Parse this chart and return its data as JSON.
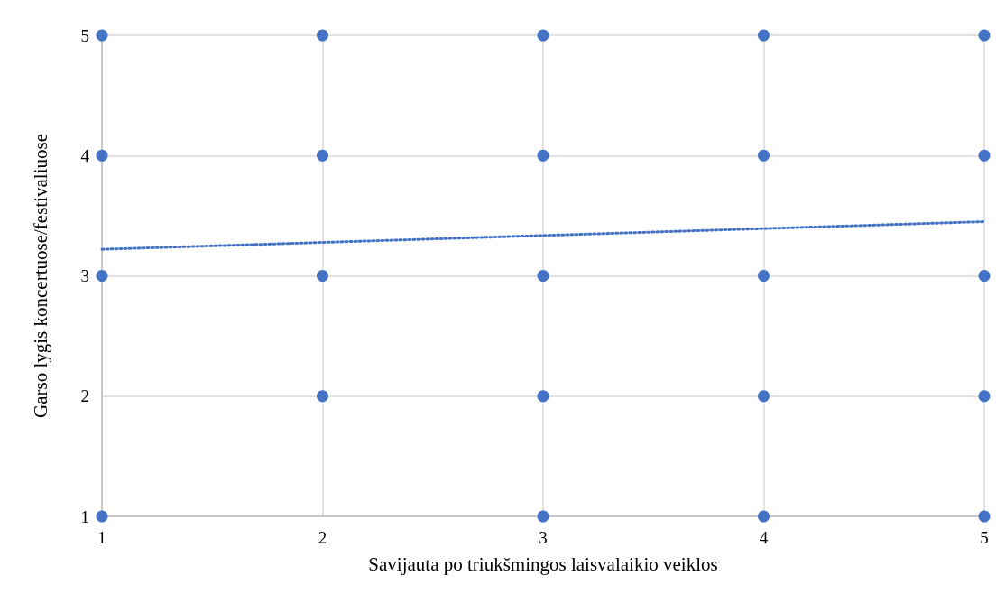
{
  "chart_data": {
    "type": "scatter",
    "xlabel": "Savijauta po triukšmingos laisvalaikio veiklos",
    "ylabel": "Garso lygis koncertuose/festivaliuose",
    "xlim": [
      1,
      5
    ],
    "xticks": [
      1,
      2,
      3,
      4,
      5
    ],
    "ylim": [
      1,
      5
    ],
    "yticks": [
      1,
      2,
      3,
      4,
      5
    ],
    "grid": true,
    "series": [
      {
        "color": "#4472c4",
        "marker": "circle",
        "x": [
          1,
          1,
          1,
          1,
          2,
          2,
          2,
          2,
          3,
          3,
          3,
          3,
          3,
          4,
          4,
          4,
          4,
          4,
          5,
          5,
          5,
          5,
          5
        ],
        "values": [
          5,
          4,
          3,
          1,
          5,
          4,
          3,
          2,
          5,
          4,
          3,
          2,
          1,
          5,
          4,
          3,
          2,
          1,
          5,
          4,
          3,
          2,
          1
        ]
      },
      {
        "type": "line",
        "color": "#4472c4",
        "line_style": "dotted",
        "marker": "none",
        "x": [
          1,
          5
        ],
        "values": [
          3.22,
          3.45
        ]
      }
    ]
  }
}
